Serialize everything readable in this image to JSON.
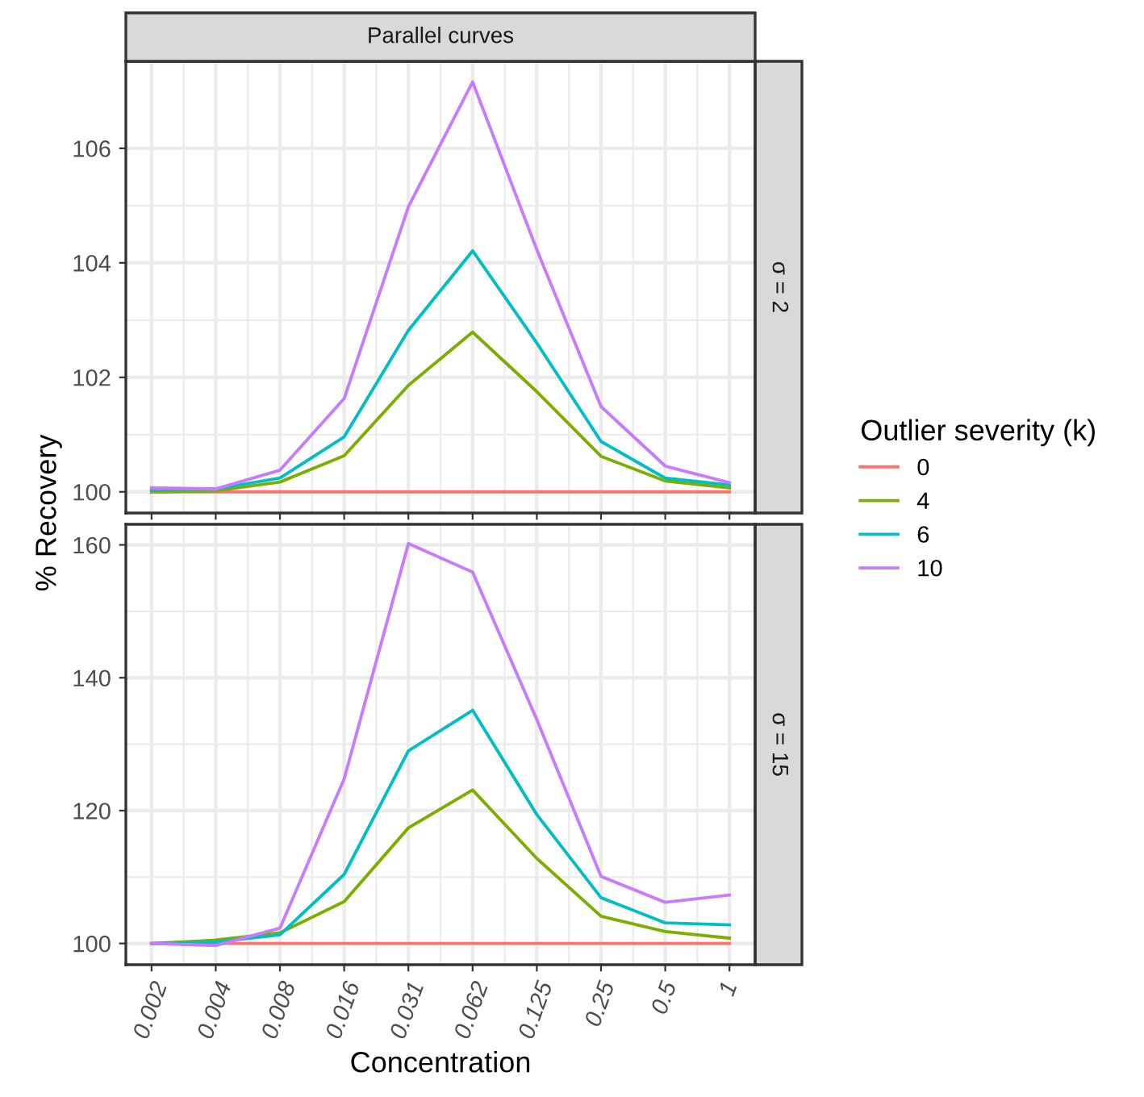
{
  "chart_data": [
    {
      "type": "line",
      "title": "Parallel curves",
      "y2label": "σ = 2",
      "ylabel": "% Recovery",
      "legend_title": "Outlier severity (k)",
      "legend": "right",
      "grid": true,
      "tick_labels": "y",
      "categories": [
        "0.002",
        "0.004",
        "0.008",
        "0.016",
        "0.031",
        "0.062",
        "0.125",
        "0.25",
        "0.5",
        "1"
      ],
      "ylim": [
        99.63,
        107.52
      ],
      "yticks": [
        100,
        102,
        104,
        106
      ],
      "series": [
        {
          "name": "0",
          "color": "#f8766d",
          "values": [
            100,
            100,
            100,
            100,
            100,
            100,
            100,
            100,
            100,
            100
          ]
        },
        {
          "name": "4",
          "color": "#7cae00",
          "values": [
            100,
            100.02,
            100.17,
            100.63,
            101.86,
            102.79,
            101.75,
            100.62,
            100.19,
            100.07
          ]
        },
        {
          "name": "6",
          "color": "#00bfc4",
          "values": [
            100.04,
            100.05,
            100.24,
            100.96,
            102.82,
            104.21,
            102.6,
            100.88,
            100.24,
            100.12
          ]
        },
        {
          "name": "10",
          "color": "#c77cff",
          "values": [
            100.07,
            100.05,
            100.38,
            101.63,
            104.98,
            107.16,
            104.23,
            101.49,
            100.45,
            100.16
          ]
        }
      ]
    },
    {
      "type": "line",
      "y2label": "σ = 15",
      "xlabel": "Concentration",
      "grid": true,
      "categories": [
        "0.002",
        "0.004",
        "0.008",
        "0.016",
        "0.031",
        "0.062",
        "0.125",
        "0.25",
        "0.5",
        "1"
      ],
      "ylim": [
        96.8,
        163.1
      ],
      "yticks": [
        100,
        120,
        140,
        160
      ],
      "series": [
        {
          "name": "0",
          "color": "#f8766d",
          "values": [
            100,
            100,
            100,
            100,
            100,
            100,
            100,
            100,
            100,
            100
          ]
        },
        {
          "name": "4",
          "color": "#7cae00",
          "values": [
            100,
            100.5,
            101.6,
            106.3,
            117.4,
            123.1,
            112.8,
            104.1,
            101.8,
            100.8
          ]
        },
        {
          "name": "6",
          "color": "#00bfc4",
          "values": [
            100,
            100.2,
            101.3,
            110.4,
            129.0,
            135.1,
            119.4,
            106.9,
            103.1,
            102.8
          ]
        },
        {
          "name": "10",
          "color": "#c77cff",
          "values": [
            100,
            99.7,
            102.3,
            124.8,
            160.2,
            155.9,
            133.7,
            110.1,
            106.2,
            107.3
          ]
        }
      ]
    }
  ]
}
